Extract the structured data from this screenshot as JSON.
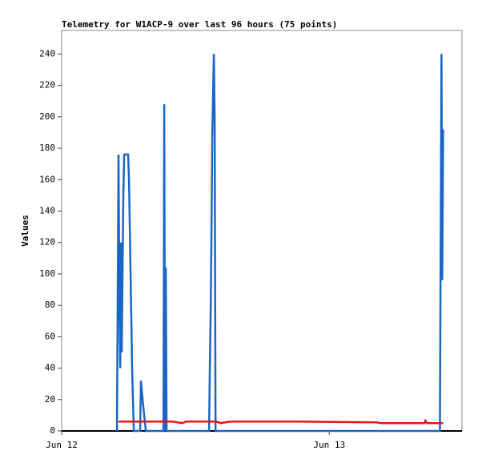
{
  "chart_data": {
    "type": "line",
    "title": "Telemetry for W1ACP-9 over last 96 hours (75 points)",
    "y_label": "Values",
    "xlim": [
      0,
      35.9
    ],
    "xticks": [
      {
        "value": 0,
        "label": "Jun 12"
      },
      {
        "value": 24,
        "label": "Jun 13"
      }
    ],
    "ylim": [
      0,
      255
    ],
    "yticks": [
      0,
      20,
      40,
      60,
      80,
      100,
      120,
      140,
      160,
      180,
      200,
      220,
      240
    ],
    "series": [
      {
        "color": "#1a66c4",
        "x": [
          4.96,
          5.1,
          5.17,
          5.25,
          5.32,
          5.39,
          5.53,
          5.61,
          5.96,
          6.04,
          6.18,
          6.32,
          6.47,
          7.04,
          7.11,
          7.26,
          7.4,
          7.55,
          9.13,
          9.2,
          9.27,
          9.34,
          9.41,
          13.22,
          13.29,
          13.37,
          13.44,
          13.51,
          13.65,
          13.72,
          13.8,
          33.92,
          33.99,
          34.06,
          34.13,
          34.21
        ],
        "values": [
          0,
          176,
          90,
          40,
          120,
          50,
          150,
          176,
          176,
          160,
          100,
          40,
          0,
          0,
          32,
          20,
          10,
          0,
          0,
          208,
          0,
          104,
          0,
          0,
          40,
          80,
          130,
          190,
          240,
          200,
          0,
          0,
          120,
          240,
          96,
          192
        ]
      },
      {
        "color": "#e8141a",
        "x": [
          5.1,
          8.84,
          9.92,
          10.85,
          11.14,
          13.87,
          14.23,
          15.16,
          20.7,
          28.24,
          28.6,
          32.55,
          32.62,
          32.77,
          34.21
        ],
        "values": [
          6,
          6,
          6,
          5,
          6,
          6,
          5,
          6,
          6,
          5.5,
          5,
          5,
          6.5,
          5,
          5
        ]
      }
    ]
  }
}
